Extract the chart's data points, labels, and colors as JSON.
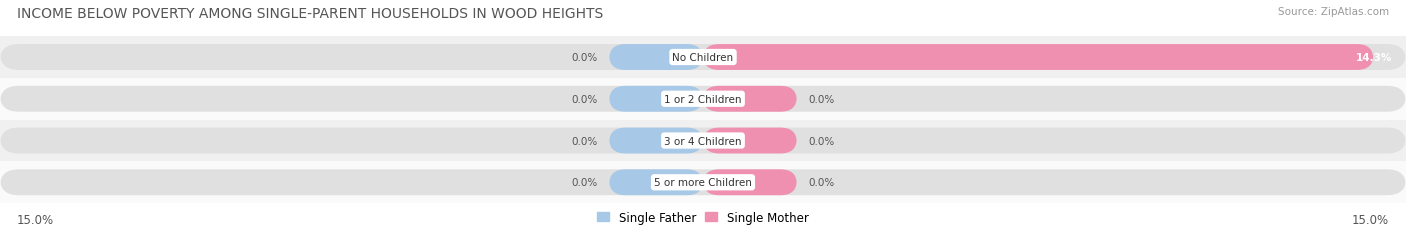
{
  "title": "INCOME BELOW POVERTY AMONG SINGLE-PARENT HOUSEHOLDS IN WOOD HEIGHTS",
  "source": "Source: ZipAtlas.com",
  "categories": [
    "No Children",
    "1 or 2 Children",
    "3 or 4 Children",
    "5 or more Children"
  ],
  "single_father": [
    0.0,
    0.0,
    0.0,
    0.0
  ],
  "single_mother": [
    14.3,
    0.0,
    0.0,
    0.0
  ],
  "x_max": 15.0,
  "x_min": -15.0,
  "father_color": "#a8c8e8",
  "mother_color": "#f090b0",
  "bar_bg_color": "#e0e0e0",
  "row_bg_even": "#f0f0f0",
  "row_bg_odd": "#fafafa",
  "label_color": "#555555",
  "title_color": "#555555",
  "title_fontsize": 10,
  "source_fontsize": 7.5,
  "tick_fontsize": 8.5,
  "label_fontsize": 7.5,
  "category_fontsize": 7.5,
  "legend_fontsize": 8.5,
  "axis_label_left": "15.0%",
  "axis_label_right": "15.0%",
  "min_bar_width": 2.0
}
